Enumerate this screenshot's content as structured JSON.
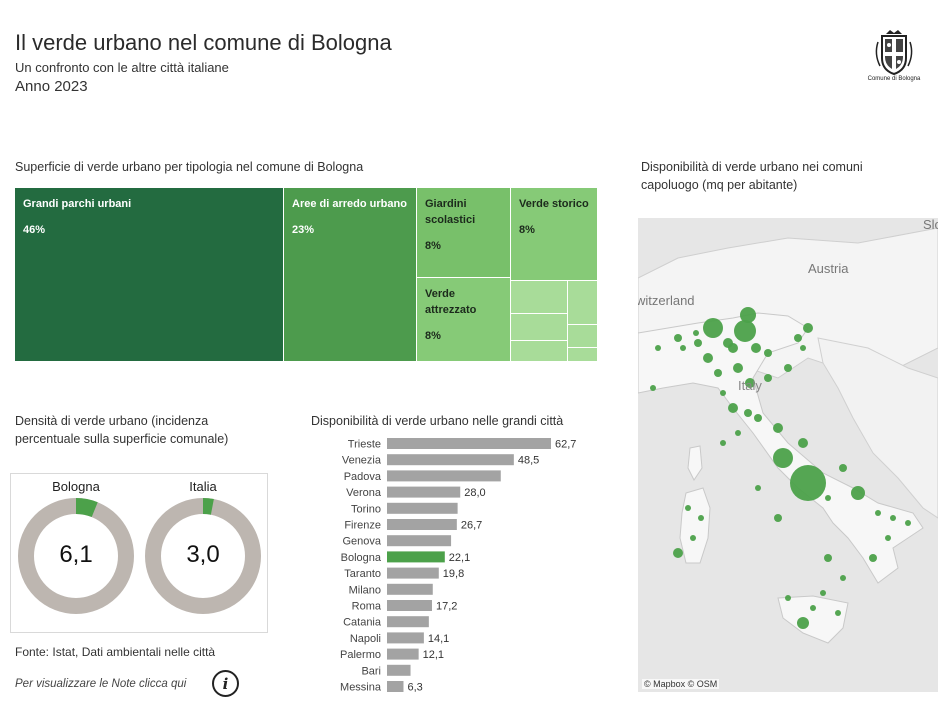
{
  "header": {
    "title": "Il verde urbano nel comune di Bologna",
    "subtitle": "Un confronto con le altre città italiane",
    "year": "Anno 2023",
    "logo_text": "Comune di Bologna"
  },
  "treemap": {
    "title": "Superficie di verde urbano per tipologia nel comune di Bologna",
    "tiles": [
      {
        "label": "Grandi parchi urbani",
        "value": "46%",
        "color": "#236b40"
      },
      {
        "label": "Aree di  arredo urbano",
        "value": "23%",
        "color": "#4d9b4d"
      },
      {
        "label": "Giardini scolastici",
        "value": "8%",
        "color": "#78c06a"
      },
      {
        "label": "Verde storico",
        "value": "8%",
        "color": "#86ca77"
      },
      {
        "label": "Verde attrezzato",
        "value": "8%",
        "color": "#86ca77"
      }
    ],
    "small_color": "#a8dc99"
  },
  "density": {
    "title": "Densità di verde urbano (incidenza percentuale sulla superficie comunale)",
    "ring_color": "#bdb6b0",
    "fill_color": "#4ca14a",
    "items": [
      {
        "label": "Bologna",
        "value": "6,1",
        "pct": 6.1
      },
      {
        "label": "Italia",
        "value": "3,0",
        "pct": 3.0
      }
    ]
  },
  "source": "Fonte: Istat, Dati ambientali nelle città",
  "notes": {
    "text": "Per visualizzare le Note clicca qui",
    "icon": "info-icon"
  },
  "chart_data": [
    {
      "type": "bar",
      "orientation": "horizontal",
      "title": "Disponibilità di verde urbano nelle grandi città",
      "categories": [
        "Trieste",
        "Venezia",
        "Padova",
        "Verona",
        "Torino",
        "Firenze",
        "Genova",
        "Bologna",
        "Taranto",
        "Milano",
        "Roma",
        "Catania",
        "Napoli",
        "Palermo",
        "Bari",
        "Messina"
      ],
      "values": [
        62.7,
        48.5,
        43.5,
        28.0,
        27.0,
        26.7,
        24.5,
        22.1,
        19.8,
        17.5,
        17.2,
        16.0,
        14.1,
        12.1,
        9.0,
        6.3
      ],
      "labels": [
        "62,7",
        "48,5",
        "",
        "28,0",
        "",
        "26,7",
        "",
        "22,1",
        "19,8",
        "",
        "17,2",
        "",
        "14,1",
        "12,1",
        "",
        "6,3"
      ],
      "xlim": [
        0,
        65
      ],
      "highlight": "Bologna",
      "bar_color": "#a3a3a3",
      "highlight_color": "#4ca14a"
    }
  ],
  "map": {
    "title": "Disponibilità di verde urbano nei comuni capoluogo (mq per abitante)",
    "credit": "© Mapbox © OSM",
    "labels": [
      "Austria",
      "witzerland",
      "Italy",
      "Slo"
    ],
    "point_color": "#4ca14a"
  }
}
